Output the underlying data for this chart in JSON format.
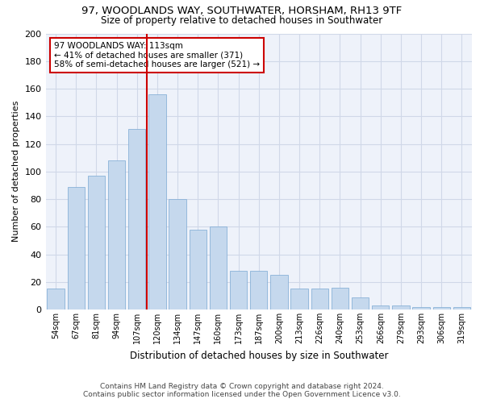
{
  "title": "97, WOODLANDS WAY, SOUTHWATER, HORSHAM, RH13 9TF",
  "subtitle": "Size of property relative to detached houses in Southwater",
  "xlabel": "Distribution of detached houses by size in Southwater",
  "ylabel": "Number of detached properties",
  "bar_color": "#c5d8ed",
  "bar_edge_color": "#7aa8d2",
  "background_color": "#eef2fa",
  "grid_color": "#d0d8e8",
  "categories": [
    "54sqm",
    "67sqm",
    "81sqm",
    "94sqm",
    "107sqm",
    "120sqm",
    "134sqm",
    "147sqm",
    "160sqm",
    "173sqm",
    "187sqm",
    "200sqm",
    "213sqm",
    "226sqm",
    "240sqm",
    "253sqm",
    "266sqm",
    "279sqm",
    "293sqm",
    "306sqm",
    "319sqm"
  ],
  "values": [
    15,
    89,
    97,
    108,
    131,
    156,
    80,
    58,
    60,
    28,
    28,
    25,
    15,
    15,
    16,
    9,
    3,
    3,
    2,
    2,
    2
  ],
  "vline_x": 4.5,
  "vline_color": "#cc0000",
  "annotation_title": "97 WOODLANDS WAY: 113sqm",
  "annotation_line1": "← 41% of detached houses are smaller (371)",
  "annotation_line2": "58% of semi-detached houses are larger (521) →",
  "annotation_box_color": "#cc0000",
  "footnote1": "Contains HM Land Registry data © Crown copyright and database right 2024.",
  "footnote2": "Contains public sector information licensed under the Open Government Licence v3.0.",
  "ylim": [
    0,
    200
  ],
  "yticks": [
    0,
    20,
    40,
    60,
    80,
    100,
    120,
    140,
    160,
    180,
    200
  ]
}
